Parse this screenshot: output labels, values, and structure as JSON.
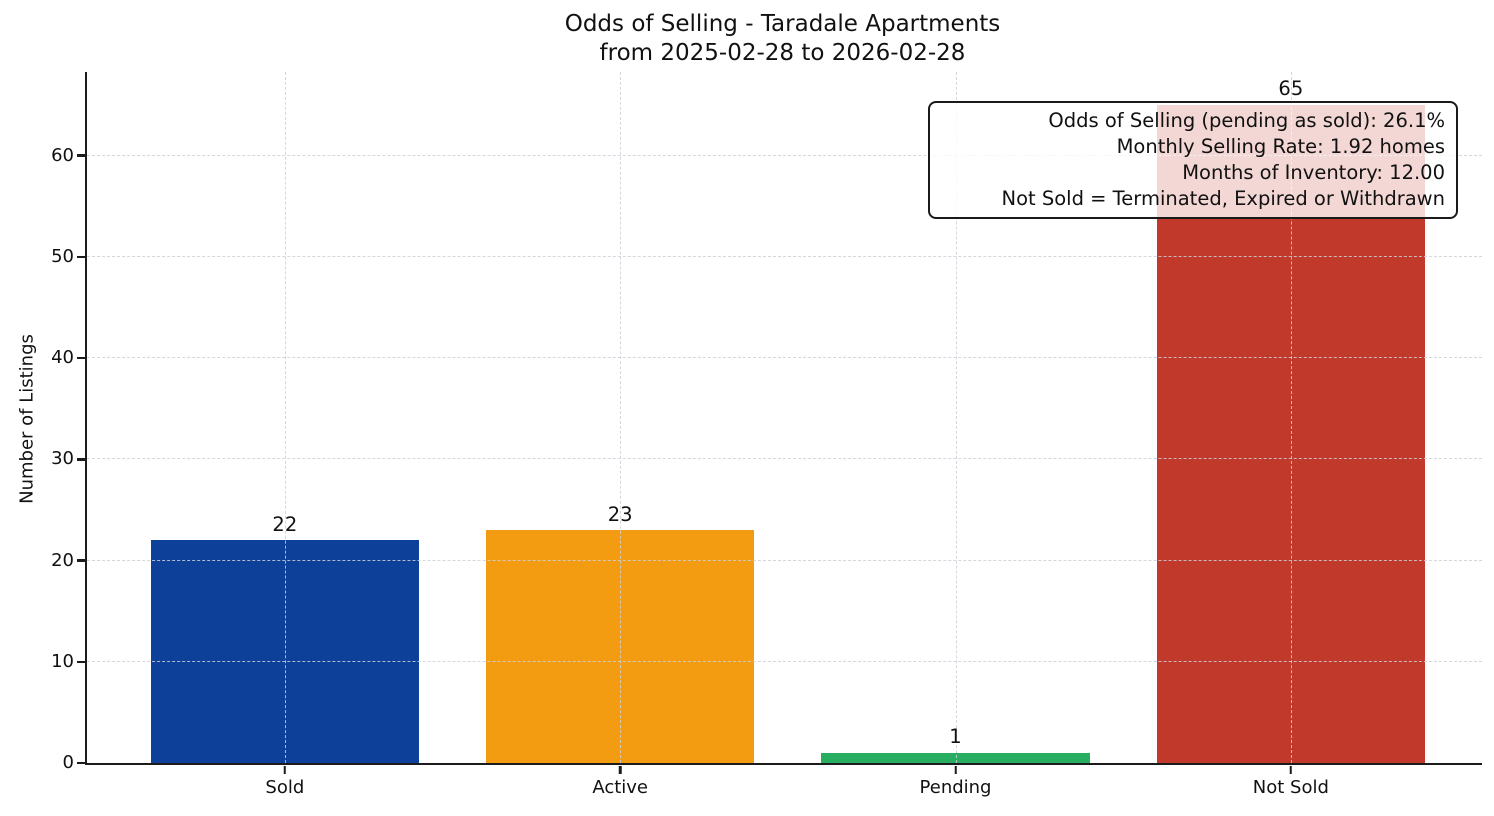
{
  "chart_data": {
    "type": "bar",
    "title": "Odds of Selling - Taradale Apartments",
    "subtitle": "from 2025-02-28 to 2026-02-28",
    "ylabel": "Number of Listings",
    "xlabel": "",
    "categories": [
      "Sold",
      "Active",
      "Pending",
      "Not Sold"
    ],
    "values": [
      22,
      23,
      1,
      65
    ],
    "value_labels": [
      "22",
      "23",
      "1",
      "65"
    ],
    "bar_colors": [
      "#0d4099",
      "#f39c12",
      "#27ae60",
      "#c0392b"
    ],
    "yticks": [
      0,
      10,
      20,
      30,
      40,
      50,
      60
    ],
    "ylim": [
      0,
      68.25
    ],
    "xlim": [
      -0.59,
      3.57
    ],
    "bar_width": 0.8,
    "grid": "dashed horizontal and vertical, drawn above bars",
    "legend": "none",
    "annotation_box": {
      "lines": [
        "Odds of Selling (pending as sold): 26.1%",
        "Monthly Selling Rate: 1.92 homes",
        "Months of Inventory: 12.00",
        "Not Sold = Terminated, Expired or Withdrawn"
      ]
    }
  }
}
